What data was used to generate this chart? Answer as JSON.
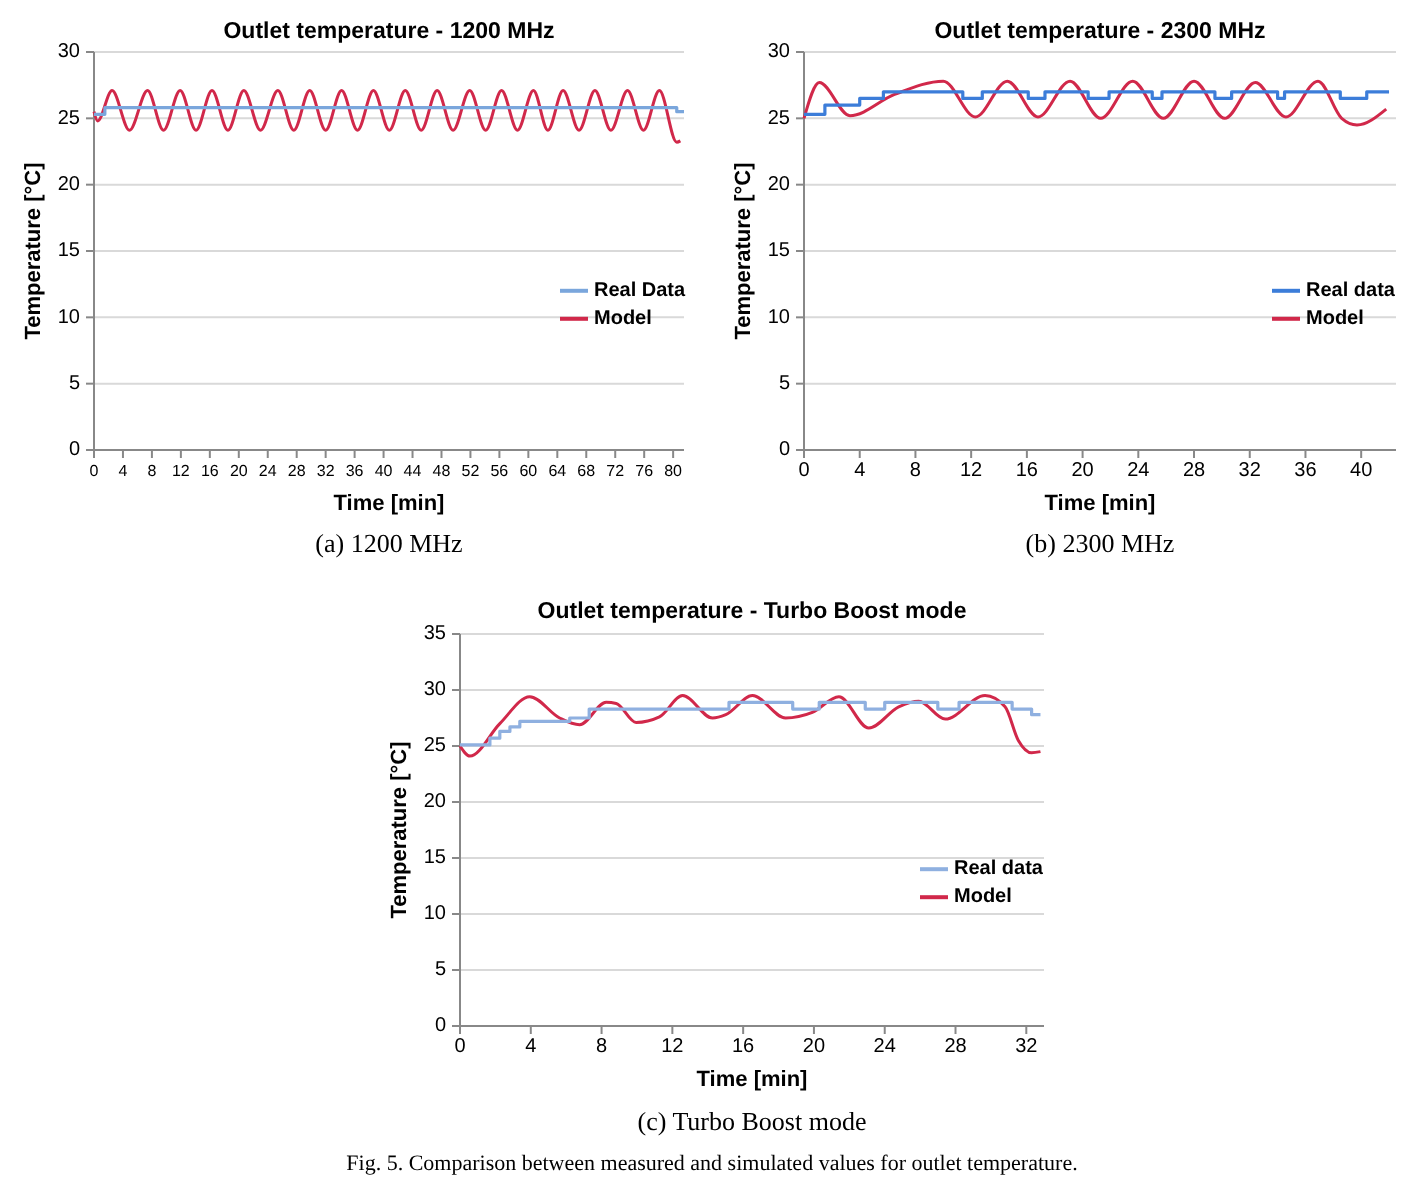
{
  "chart_data": [
    {
      "type": "line",
      "title": "Outlet temperature - 1200 MHz",
      "xlabel": "Time [min]",
      "ylabel": "Temperature [°C]",
      "xlim": [
        0,
        81.5
      ],
      "xticks": [
        0,
        4,
        8,
        12,
        16,
        20,
        24,
        28,
        32,
        36,
        40,
        44,
        48,
        52,
        56,
        60,
        64,
        68,
        72,
        76,
        80
      ],
      "ylim": [
        0,
        30
      ],
      "yticks": [
        0,
        5,
        10,
        15,
        20,
        25,
        30
      ],
      "grid": "y",
      "legend": "right",
      "annotations": [
        "(a) 1200 MHz"
      ],
      "series": [
        {
          "name": "Real Data",
          "type": "step",
          "color": "#7aa6dc",
          "x": [
            0,
            1.5,
            80.5,
            81.5
          ],
          "values": [
            25.3,
            25.8,
            25.5,
            25.5
          ]
        },
        {
          "name": "Model",
          "type": "line",
          "color": "#d1284a",
          "x": [
            0,
            0.5,
            2.5,
            4.9,
            7.4,
            9.6,
            11.9,
            14.1,
            16.3,
            18.5,
            20.7,
            23,
            25.4,
            27.6,
            29.8,
            32,
            34.2,
            36.4,
            38.6,
            40.8,
            43,
            45.2,
            47.4,
            49.6,
            51.9,
            54.1,
            56.3,
            58.5,
            60.7,
            62.7,
            64.8,
            67,
            69.2,
            71.4,
            73.7,
            75.9,
            78.1,
            80.5,
            81
          ],
          "values": [
            25.5,
            24.8,
            27.1,
            24.1,
            27.1,
            24.1,
            27.1,
            24.1,
            27.1,
            24.1,
            27.1,
            24.1,
            27.1,
            24.1,
            27.1,
            24.1,
            27.1,
            24.1,
            27.1,
            24.1,
            27.1,
            24.1,
            27.1,
            24.1,
            27.1,
            24.1,
            27.1,
            24.1,
            27.1,
            24.1,
            27.1,
            24.1,
            27.1,
            24.1,
            27.1,
            24.1,
            27.1,
            23.2,
            23.3
          ]
        }
      ]
    },
    {
      "type": "line",
      "title": "Outlet temperature - 2300 MHz",
      "xlabel": "Time [min]",
      "ylabel": "Temperature [°C]",
      "xlim": [
        0,
        42.5
      ],
      "xticks": [
        0,
        4,
        8,
        12,
        16,
        20,
        24,
        28,
        32,
        36,
        40
      ],
      "ylim": [
        0,
        30
      ],
      "yticks": [
        0,
        5,
        10,
        15,
        20,
        25,
        30
      ],
      "grid": "y",
      "legend": "right",
      "annotations": [
        "(b) 2300 MHz"
      ],
      "series": [
        {
          "name": "Real data",
          "type": "step",
          "color": "#3c7dd9",
          "x": [
            0,
            1.5,
            4,
            5.7,
            11.4,
            12.8,
            16.1,
            17.3,
            20.4,
            21.9,
            25,
            25.7,
            29.5,
            30.7,
            34,
            34.5,
            38.5,
            40.4,
            42
          ],
          "values": [
            25.3,
            26,
            26.5,
            27,
            26.5,
            27,
            26.5,
            27,
            26.5,
            27,
            26.5,
            27,
            26.5,
            27,
            26.5,
            27,
            26.5,
            27,
            27
          ]
        },
        {
          "name": "Model",
          "type": "line",
          "color": "#d1284a",
          "x": [
            0,
            1.1,
            3.3,
            6.5,
            10,
            12.3,
            14.6,
            16.8,
            19.1,
            21.3,
            23.6,
            25.8,
            28,
            30.2,
            32.4,
            34.6,
            36.9,
            38.6,
            39.7,
            41.8
          ],
          "values": [
            25,
            27.7,
            25.2,
            26.8,
            27.8,
            25.1,
            27.8,
            25.1,
            27.8,
            25,
            27.8,
            25,
            27.8,
            25,
            27.7,
            25.1,
            27.8,
            25,
            24.5,
            25.7
          ]
        }
      ]
    },
    {
      "type": "line",
      "title": "Outlet temperature - Turbo Boost mode",
      "xlabel": "Time [min]",
      "ylabel": "Temperature [°C]",
      "xlim": [
        0,
        33
      ],
      "xticks": [
        0,
        4,
        8,
        12,
        16,
        20,
        24,
        28,
        32
      ],
      "ylim": [
        0,
        35
      ],
      "yticks": [
        0,
        5,
        10,
        15,
        20,
        25,
        30,
        35
      ],
      "grid": "y",
      "legend": "right",
      "annotations": [
        "(c) Turbo Boost mode",
        "Fig. 5. Comparison between measured and simulated values for outlet temperature."
      ],
      "series": [
        {
          "name": "Real data",
          "type": "step",
          "color": "#8fb0e0",
          "x": [
            0,
            1.69,
            2.25,
            2.82,
            3.38,
            6.2,
            7.3,
            15.2,
            18.8,
            20.3,
            22.9,
            24,
            27,
            28.2,
            31.2,
            32.3,
            32.8
          ],
          "values": [
            25.1,
            25.7,
            26.3,
            26.7,
            27.2,
            27.5,
            28.3,
            28.9,
            28.3,
            28.9,
            28.3,
            28.9,
            28.3,
            28.9,
            28.3,
            27.8,
            27.8
          ]
        },
        {
          "name": "Model",
          "type": "line",
          "color": "#d1284a",
          "x": [
            0,
            0.56,
            2.25,
            3.94,
            5.63,
            6.76,
            8.26,
            8.83,
            9.95,
            11.27,
            12.58,
            14.27,
            15.02,
            16.53,
            18.4,
            19.91,
            21.41,
            23.1,
            24.79,
            25.92,
            27.42,
            29.67,
            30.8,
            31.55,
            32.3,
            32.8
          ],
          "values": [
            25,
            24.1,
            27,
            29.4,
            27.5,
            26.9,
            28.9,
            28.8,
            27.1,
            27.6,
            29.5,
            27.5,
            27.8,
            29.5,
            27.5,
            28,
            29.4,
            26.6,
            28.5,
            29,
            27.4,
            29.5,
            28.5,
            25.5,
            24.4,
            24.5
          ]
        }
      ]
    }
  ]
}
